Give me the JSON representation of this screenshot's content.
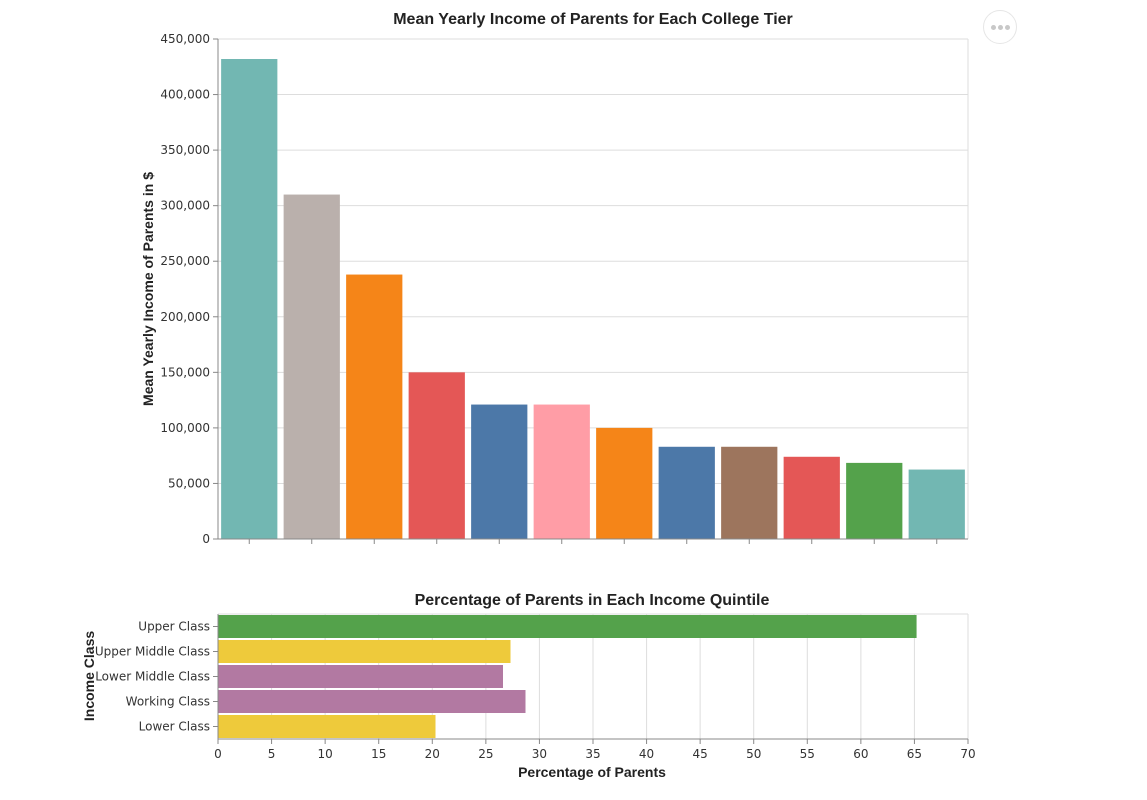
{
  "chart_data": [
    {
      "type": "bar",
      "title": "Mean Yearly Income of Parents for Each College Tier",
      "xlabel": "",
      "ylabel": "Mean Yearly Income of Parents in $",
      "ylim": [
        0,
        450000
      ],
      "yticks": [
        "0",
        "50,000",
        "100,000",
        "150,000",
        "200,000",
        "250,000",
        "300,000",
        "350,000",
        "400,000",
        "450,000"
      ],
      "values": [
        432000,
        310000,
        238000,
        150000,
        121000,
        121000,
        100000,
        83000,
        83000,
        74000,
        68500,
        62500
      ],
      "colors": [
        "#72b7b2",
        "#bab0ac",
        "#f58518",
        "#e45756",
        "#4c78a8",
        "#ff9da6",
        "#f58518",
        "#4c78a8",
        "#9d755d",
        "#e45756",
        "#54a24b",
        "#72b7b2"
      ],
      "grid": true
    },
    {
      "type": "bar",
      "orientation": "horizontal",
      "title": "Percentage of Parents in Each Income Quintile",
      "xlabel": "Percentage of Parents",
      "ylabel": "Income Class",
      "xlim": [
        0,
        70
      ],
      "xticks": [
        "0",
        "5",
        "10",
        "15",
        "20",
        "25",
        "30",
        "35",
        "40",
        "45",
        "50",
        "55",
        "60",
        "65",
        "70"
      ],
      "categories": [
        "Upper Class",
        "Upper Middle Class",
        "Lower Middle Class",
        "Working Class",
        "Lower Class"
      ],
      "values": [
        65.2,
        27.3,
        26.6,
        28.7,
        20.3
      ],
      "colors": [
        "#54a24b",
        "#eeca3b",
        "#b279a2",
        "#b279a2",
        "#eeca3b"
      ],
      "grid": true
    }
  ]
}
